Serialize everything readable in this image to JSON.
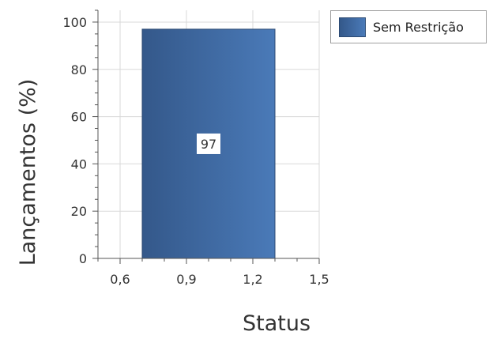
{
  "chart_data": {
    "type": "bar",
    "xlabel": "Status",
    "ylabel": "Lançamentos (%)",
    "xlim": [
      0.5,
      1.5
    ],
    "ylim": [
      0,
      105
    ],
    "x_ticks": [
      "0,6",
      "0,9",
      "1,2",
      "1,5"
    ],
    "x_tick_values": [
      0.6,
      0.9,
      1.2,
      1.5
    ],
    "y_ticks": [
      "0",
      "20",
      "40",
      "60",
      "80",
      "100"
    ],
    "y_tick_values": [
      0,
      20,
      40,
      60,
      80,
      100
    ],
    "grid": true,
    "legend_position": "top-right",
    "series": [
      {
        "name": "Sem Restrição",
        "color": "#3f6aa3",
        "points": [
          {
            "x_start": 0.7,
            "x_end": 1.3,
            "value": 97,
            "label": "97"
          }
        ]
      }
    ]
  }
}
